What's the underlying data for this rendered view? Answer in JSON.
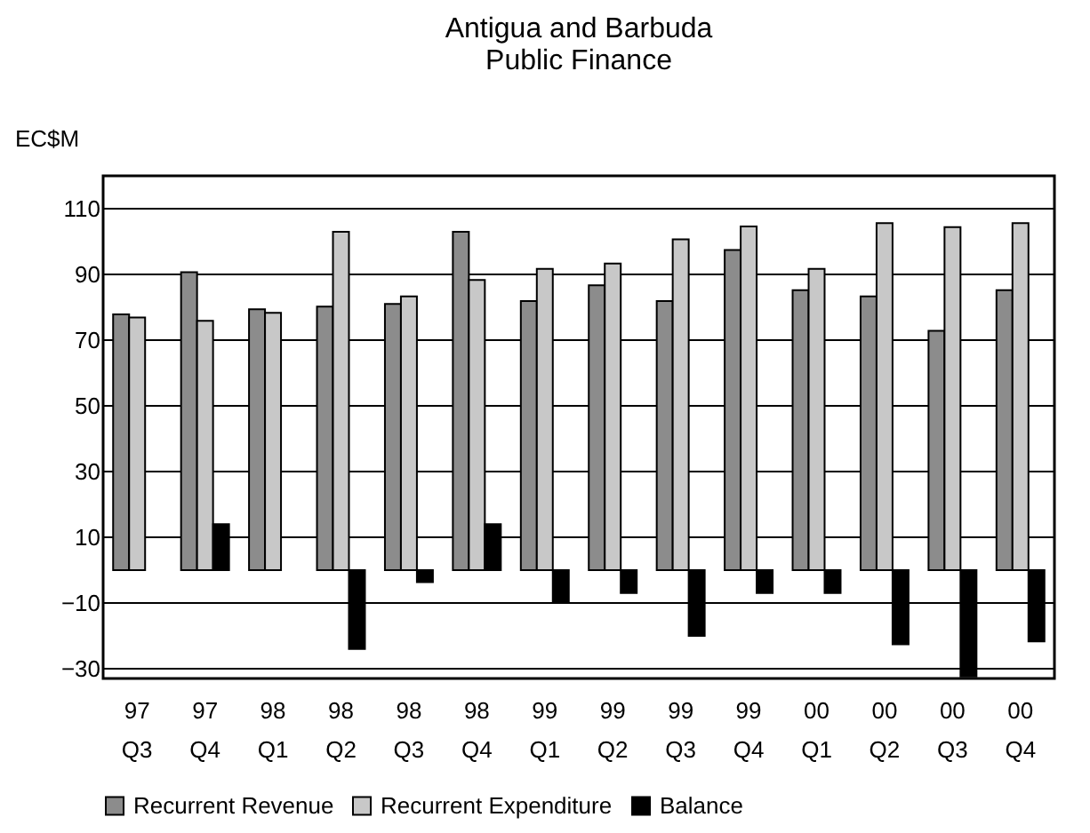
{
  "chart_data": {
    "type": "bar",
    "title": "Antigua and Barbuda\nPublic Finance",
    "ylabel": "EC$M",
    "categories": [
      "97 Q3",
      "97 Q4",
      "98 Q1",
      "98 Q2",
      "98 Q3",
      "98 Q4",
      "99 Q1",
      "99 Q2",
      "99 Q3",
      "99 Q4",
      "00 Q1",
      "00 Q2",
      "00 Q3",
      "00 Q4"
    ],
    "series": [
      {
        "name": "Recurrent Revenue",
        "color": "#8c8c8c",
        "values": [
          77.8,
          90.7,
          79.4,
          80.2,
          81,
          103,
          81.9,
          86.7,
          81.9,
          97.4,
          85.2,
          83.3,
          72.8,
          85.2
        ]
      },
      {
        "name": "Recurrent Expenditure",
        "color": "#c8c8c8",
        "values": [
          76.9,
          75.9,
          78.3,
          103,
          83.3,
          88.3,
          91.7,
          93.3,
          100.7,
          104.6,
          91.7,
          105.6,
          104.4,
          105.6
        ]
      },
      {
        "name": "Balance",
        "color": "#000000",
        "values": [
          null,
          14,
          null,
          -24,
          -3.7,
          14,
          -10,
          -7,
          -20,
          -7,
          -7,
          -22.6,
          -32.4,
          -21.7
        ]
      }
    ],
    "ylim": [
      -33,
      120
    ],
    "yticks": [
      -30,
      -10,
      10,
      30,
      50,
      70,
      90,
      110
    ],
    "grid": "y",
    "legend": "bottom"
  }
}
